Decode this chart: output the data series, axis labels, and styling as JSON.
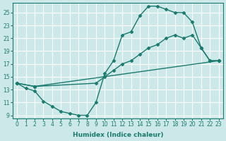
{
  "xlabel": "Humidex (Indice chaleur)",
  "background_color": "#cce8e8",
  "grid_color": "#ffffff",
  "line_color": "#1a7a6e",
  "xlim": [
    -0.5,
    23.5
  ],
  "ylim": [
    8.5,
    26.5
  ],
  "xticks": [
    0,
    1,
    2,
    3,
    4,
    5,
    6,
    7,
    8,
    9,
    10,
    11,
    12,
    13,
    14,
    15,
    16,
    17,
    18,
    19,
    20,
    21,
    22,
    23
  ],
  "yticks": [
    9,
    11,
    13,
    15,
    17,
    19,
    21,
    23,
    25
  ],
  "line1_x": [
    0,
    1,
    2,
    3,
    4,
    5,
    6,
    7,
    8,
    9,
    10,
    11,
    12,
    13,
    14,
    15,
    16,
    17,
    18,
    19,
    20,
    21,
    22,
    23
  ],
  "line1_y": [
    14.0,
    13.2,
    12.8,
    11.2,
    10.4,
    9.6,
    9.3,
    9.0,
    9.0,
    11.0,
    15.5,
    17.5,
    21.5,
    22.0,
    24.5,
    26.0,
    26.0,
    25.5,
    25.0,
    25.0,
    23.5,
    19.5,
    17.5,
    17.5
  ],
  "line2_x": [
    0,
    2,
    9,
    10,
    11,
    12,
    13,
    14,
    15,
    16,
    17,
    18,
    19,
    20,
    21,
    22,
    23
  ],
  "line2_y": [
    14.0,
    13.5,
    14.0,
    15.0,
    16.0,
    17.0,
    17.5,
    18.5,
    19.5,
    20.0,
    21.0,
    21.5,
    21.0,
    21.5,
    19.5,
    17.5,
    17.5
  ],
  "line3_x": [
    0,
    2,
    23
  ],
  "line3_y": [
    14.0,
    13.5,
    17.5
  ]
}
